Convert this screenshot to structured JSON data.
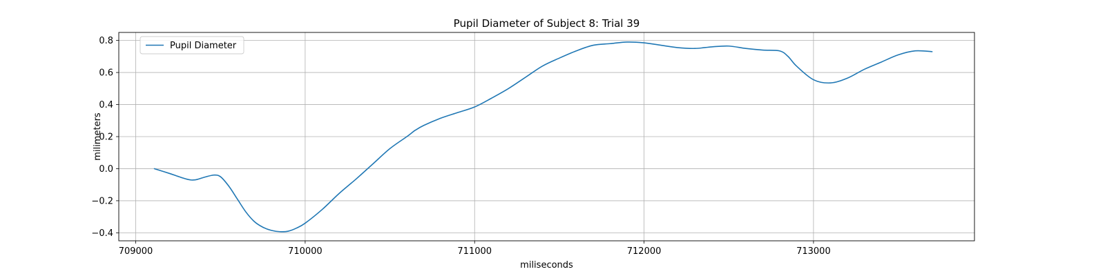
{
  "chart_data": {
    "type": "line",
    "title": "Pupil Diameter of Subject 8: Trial 39",
    "xlabel": "miliseconds",
    "ylabel": "milimeters",
    "xlim": [
      708900,
      713950
    ],
    "ylim": [
      -0.45,
      0.85
    ],
    "x_ticks": [
      709000,
      710000,
      711000,
      712000,
      713000
    ],
    "y_ticks": [
      -0.4,
      -0.2,
      0.0,
      0.2,
      0.4,
      0.6,
      0.8
    ],
    "x_tick_labels": [
      "709000",
      "710000",
      "711000",
      "712000",
      "713000"
    ],
    "y_tick_labels": [
      "−0.4",
      "−0.2",
      "0.0",
      "0.2",
      "0.4",
      "0.6",
      "0.8"
    ],
    "grid": true,
    "legend": {
      "placement": "top-left",
      "entries": [
        "Pupil Diameter"
      ]
    },
    "series": [
      {
        "name": "Pupil Diameter",
        "color": "#1f77b4",
        "x": [
          709110,
          709200,
          709300,
          709350,
          709400,
          709460,
          709500,
          709550,
          709600,
          709650,
          709700,
          709750,
          709800,
          709850,
          709900,
          709950,
          710000,
          710100,
          710200,
          710300,
          710400,
          710500,
          710600,
          710650,
          710700,
          710800,
          710900,
          711000,
          711100,
          711200,
          711300,
          711400,
          711500,
          711600,
          711700,
          711800,
          711900,
          712000,
          712100,
          712200,
          712300,
          712400,
          712500,
          712600,
          712700,
          712800,
          712850,
          712900,
          713000,
          713100,
          713200,
          713300,
          713400,
          713500,
          713600,
          713700
        ],
        "y": [
          0.0,
          -0.03,
          -0.065,
          -0.07,
          -0.055,
          -0.04,
          -0.05,
          -0.11,
          -0.19,
          -0.27,
          -0.33,
          -0.365,
          -0.385,
          -0.393,
          -0.39,
          -0.37,
          -0.34,
          -0.255,
          -0.155,
          -0.065,
          0.03,
          0.125,
          0.2,
          0.24,
          0.27,
          0.315,
          0.35,
          0.385,
          0.44,
          0.5,
          0.57,
          0.64,
          0.69,
          0.735,
          0.77,
          0.78,
          0.79,
          0.785,
          0.77,
          0.755,
          0.75,
          0.76,
          0.765,
          0.75,
          0.74,
          0.735,
          0.7,
          0.64,
          0.555,
          0.535,
          0.565,
          0.62,
          0.665,
          0.71,
          0.735,
          0.73
        ]
      }
    ]
  }
}
